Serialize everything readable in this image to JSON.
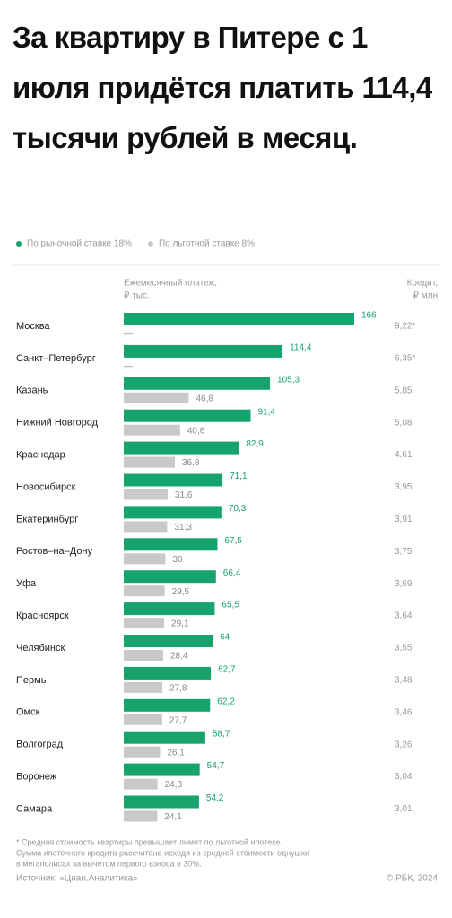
{
  "chart_data": {
    "type": "bar",
    "orientation": "horizontal",
    "title": "За квартиру в Питере с 1 июля придётся платить 114,4 тысячи рублей в месяц.",
    "value_header": "Ежемесячный платеж,",
    "value_unit": "₽ тыс.",
    "credit_header": "Кредит,",
    "credit_unit": "₽ млн",
    "categories": [
      "Москва",
      "Санкт–Петербург",
      "Казань",
      "Нижний Новгород",
      "Краснодар",
      "Новосибирск",
      "Екатеринбург",
      "Ростов–на–Дону",
      "Уфа",
      "Красноярск",
      "Челябинск",
      "Пермь",
      "Омск",
      "Волгоград",
      "Воронеж",
      "Самара"
    ],
    "series": [
      {
        "name": "По рыночной ставке 18%",
        "color": "#16a46c",
        "values": [
          166,
          114.4,
          105.3,
          91.4,
          82.9,
          71.1,
          70.3,
          67.5,
          66.4,
          65.5,
          64,
          62.7,
          62.2,
          58.7,
          54.7,
          54.2
        ],
        "value_labels": [
          "166",
          "114,4",
          "105,3",
          "91,4",
          "82,9",
          "71,1",
          "70,3",
          "67,5",
          "66,4",
          "65,5",
          "64",
          "62,7",
          "62,2",
          "58,7",
          "54,7",
          "54,2"
        ]
      },
      {
        "name": "По льготной ставке 8%",
        "color": "#c9c9c9",
        "values": [
          null,
          null,
          46.8,
          40.6,
          36.8,
          31.6,
          31.3,
          30,
          29.5,
          29.1,
          28.4,
          27.8,
          27.7,
          26.1,
          24.3,
          24.1
        ],
        "value_labels": [
          "—",
          "—",
          "46,8",
          "40,6",
          "36,8",
          "31,6",
          "31,3",
          "30",
          "29,5",
          "29,1",
          "28,4",
          "27,8",
          "27,7",
          "26,1",
          "24,3",
          "24,1"
        ]
      }
    ],
    "credit_labels": [
      "9,22*",
      "6,35*",
      "5,85",
      "5,08",
      "4,61",
      "3,95",
      "3,91",
      "3,75",
      "3,69",
      "3,64",
      "3,55",
      "3,48",
      "3,46",
      "3,26",
      "3,04",
      "3,01"
    ],
    "footnote": [
      "* Средняя стоимость квартиры превышает лимит по льготной ипотеке.",
      "Сумма ипотечного кредита рассчитана исходя из средней стоимости однушки",
      "в мегаполисах за вычетом первого взноса в 30%."
    ],
    "source": "Источник: «Циан.Аналитика»",
    "copyright": "© РБК, 2024"
  }
}
